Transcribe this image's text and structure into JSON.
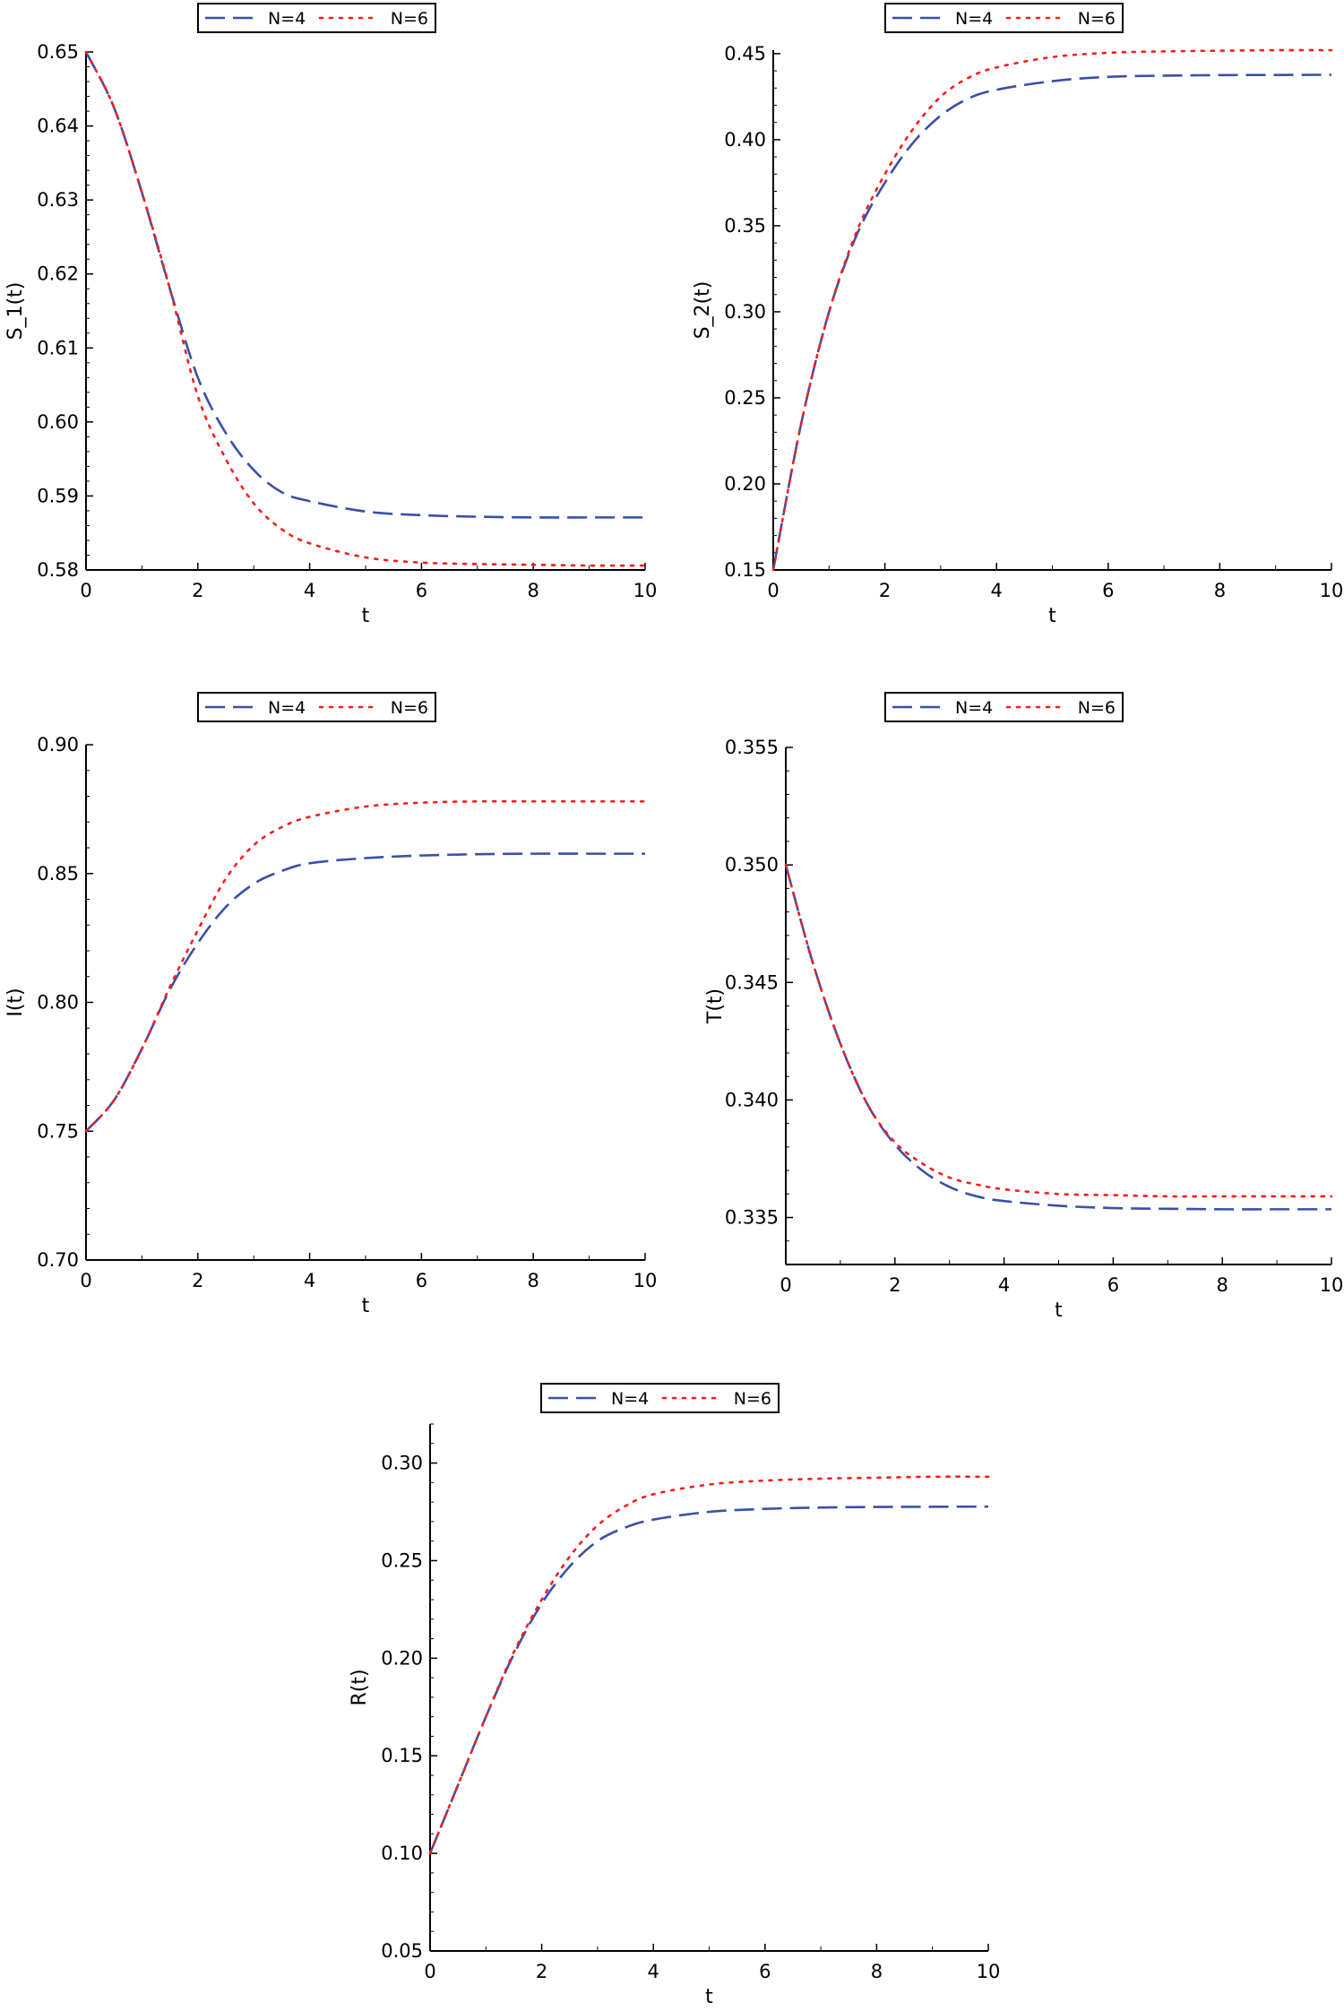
{
  "colors": {
    "n4": "#3a4fa8",
    "n6": "#ff1a1a"
  },
  "chart_data": [
    {
      "type": "line",
      "xlabel": "t",
      "ylabel": "S_1(t)",
      "xlim": [
        0,
        10
      ],
      "ylim": [
        0.58,
        0.65
      ],
      "xticks": [
        "0",
        "2",
        "4",
        "6",
        "8",
        "10"
      ],
      "yticks": [
        "0.58",
        "0.59",
        "0.60",
        "0.61",
        "0.62",
        "0.63",
        "0.64",
        "0.65"
      ],
      "grid": false,
      "legend": "top-center",
      "x": [
        0,
        0.5,
        1,
        1.5,
        2,
        2.5,
        3,
        3.5,
        4,
        5,
        6,
        7,
        8,
        9,
        10
      ],
      "series": [
        {
          "name": "N=4",
          "style": "dashed",
          "values": [
            0.65,
            0.6425,
            0.631,
            0.618,
            0.606,
            0.5985,
            0.5935,
            0.5905,
            0.5893,
            0.5879,
            0.5874,
            0.5872,
            0.5871,
            0.5871,
            0.5871
          ]
        },
        {
          "name": "N=6",
          "style": "dotted",
          "values": [
            0.65,
            0.6425,
            0.631,
            0.618,
            0.6035,
            0.595,
            0.589,
            0.5855,
            0.5836,
            0.5817,
            0.581,
            0.5808,
            0.5807,
            0.5806,
            0.5806
          ]
        }
      ]
    },
    {
      "type": "line",
      "xlabel": "t",
      "ylabel": "S_2(t)",
      "xlim": [
        0,
        10
      ],
      "ylim": [
        0.15,
        0.452
      ],
      "xticks": [
        "0",
        "2",
        "4",
        "6",
        "8",
        "10"
      ],
      "yticks": [
        "0.15",
        "0.20",
        "0.25",
        "0.30",
        "0.35",
        "0.40",
        "0.45"
      ],
      "grid": false,
      "legend": "top-center",
      "x": [
        0,
        0.5,
        1,
        1.5,
        2,
        2.5,
        3,
        3.5,
        4,
        5,
        6,
        7,
        8,
        9,
        10
      ],
      "series": [
        {
          "name": "N=4",
          "style": "dashed",
          "values": [
            0.15,
            0.235,
            0.3,
            0.345,
            0.375,
            0.398,
            0.414,
            0.424,
            0.429,
            0.434,
            0.4365,
            0.4372,
            0.4375,
            0.4376,
            0.4377
          ]
        },
        {
          "name": "N=6",
          "style": "dotted",
          "values": [
            0.15,
            0.235,
            0.3,
            0.347,
            0.38,
            0.406,
            0.425,
            0.436,
            0.442,
            0.448,
            0.4505,
            0.4513,
            0.4517,
            0.452,
            0.452
          ]
        }
      ]
    },
    {
      "type": "line",
      "xlabel": "t",
      "ylabel": "I(t)",
      "xlim": [
        0,
        10
      ],
      "ylim": [
        0.7,
        0.9
      ],
      "xticks": [
        "0",
        "2",
        "4",
        "6",
        "8",
        "10"
      ],
      "yticks": [
        "0.70",
        "0.75",
        "0.80",
        "0.85",
        "0.90"
      ],
      "grid": false,
      "legend": "top-center",
      "x": [
        0,
        0.5,
        1,
        1.5,
        2,
        2.5,
        3,
        3.5,
        4,
        5,
        6,
        7,
        8,
        9,
        10
      ],
      "series": [
        {
          "name": "N=4",
          "style": "dashed",
          "values": [
            0.75,
            0.762,
            0.782,
            0.805,
            0.823,
            0.837,
            0.846,
            0.851,
            0.854,
            0.856,
            0.857,
            0.8575,
            0.8577,
            0.8577,
            0.8577
          ]
        },
        {
          "name": "N=6",
          "style": "dotted",
          "values": [
            0.75,
            0.762,
            0.782,
            0.806,
            0.828,
            0.848,
            0.861,
            0.868,
            0.872,
            0.876,
            0.8775,
            0.878,
            0.878,
            0.878,
            0.878
          ]
        }
      ]
    },
    {
      "type": "line",
      "xlabel": "t",
      "ylabel": "T(t)",
      "xlim": [
        0,
        10
      ],
      "ylim": [
        0.333,
        0.355
      ],
      "xticks": [
        "0",
        "2",
        "4",
        "6",
        "8",
        "10"
      ],
      "yticks": [
        "0.335",
        "0.340",
        "0.345",
        "0.350",
        "0.355"
      ],
      "grid": false,
      "legend": "top-center",
      "x": [
        0,
        0.5,
        1,
        1.5,
        2,
        2.5,
        3,
        3.5,
        4,
        5,
        6,
        7,
        8,
        9,
        10
      ],
      "series": [
        {
          "name": "N=4",
          "style": "dashed",
          "values": [
            0.35,
            0.3458,
            0.3424,
            0.3398,
            0.3381,
            0.337,
            0.3363,
            0.3359,
            0.3357,
            0.3355,
            0.3354,
            0.33537,
            0.33535,
            0.33535,
            0.33535
          ]
        },
        {
          "name": "N=6",
          "style": "dotted",
          "values": [
            0.35,
            0.3458,
            0.3424,
            0.3398,
            0.3382,
            0.3373,
            0.3367,
            0.3364,
            0.3362,
            0.336,
            0.33595,
            0.3359,
            0.3359,
            0.3359,
            0.3359
          ]
        }
      ]
    },
    {
      "type": "line",
      "xlabel": "t",
      "ylabel": "R(t)",
      "xlim": [
        0,
        10
      ],
      "ylim": [
        0.05,
        0.32
      ],
      "xticks": [
        "0",
        "2",
        "4",
        "6",
        "8",
        "10"
      ],
      "yticks": [
        "0.05",
        "0.10",
        "0.15",
        "0.20",
        "0.25",
        "0.30"
      ],
      "grid": false,
      "legend": "top-center",
      "x": [
        0,
        0.5,
        1,
        1.5,
        2,
        2.5,
        3,
        3.5,
        4,
        5,
        6,
        7,
        8,
        9,
        10
      ],
      "series": [
        {
          "name": "N=4",
          "style": "dashed",
          "values": [
            0.1,
            0.135,
            0.17,
            0.202,
            0.228,
            0.247,
            0.26,
            0.267,
            0.271,
            0.275,
            0.2765,
            0.2772,
            0.2775,
            0.2776,
            0.2777
          ]
        },
        {
          "name": "N=6",
          "style": "dotted",
          "values": [
            0.1,
            0.135,
            0.17,
            0.203,
            0.23,
            0.252,
            0.268,
            0.278,
            0.284,
            0.289,
            0.291,
            0.292,
            0.2925,
            0.293,
            0.293
          ]
        }
      ]
    }
  ]
}
